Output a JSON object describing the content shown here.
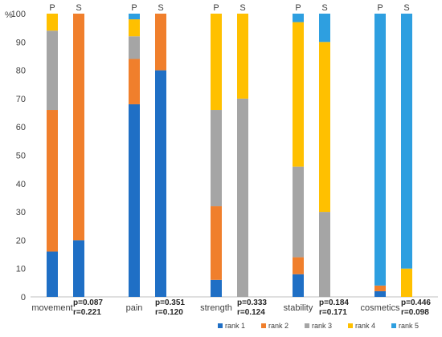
{
  "chart_data": {
    "type": "bar",
    "stacked": true,
    "ylabel": "%",
    "ylim": [
      0,
      100
    ],
    "yticks": [
      0,
      10,
      20,
      30,
      40,
      50,
      60,
      70,
      80,
      90,
      100
    ],
    "grid": false,
    "legend_position": "bottom-right",
    "series": [
      {
        "name": "rank 1",
        "color": "#1F6FC5"
      },
      {
        "name": "rank 2",
        "color": "#F07F2C"
      },
      {
        "name": "rank 3",
        "color": "#A5A5A5"
      },
      {
        "name": "rank 4",
        "color": "#FFC000"
      },
      {
        "name": "rank 5",
        "color": "#2E9FE0"
      }
    ],
    "groups": [
      {
        "label": "movement",
        "stats": [
          "p=0.087",
          "r=0.221"
        ],
        "bars": [
          {
            "label": "P",
            "values": [
              16,
              50,
              28,
              6,
              0
            ]
          },
          {
            "label": "S",
            "values": [
              20,
              80,
              0,
              0,
              0
            ]
          }
        ]
      },
      {
        "label": "pain",
        "stats": [
          "p=0.351",
          "r=0.120"
        ],
        "bars": [
          {
            "label": "P",
            "values": [
              68,
              16,
              8,
              6,
              2
            ]
          },
          {
            "label": "S",
            "values": [
              80,
              20,
              0,
              0,
              0
            ]
          }
        ]
      },
      {
        "label": "strength",
        "stats": [
          "p=0.333",
          "r=0.124"
        ],
        "bars": [
          {
            "label": "P",
            "values": [
              6,
              26,
              34,
              34,
              0
            ]
          },
          {
            "label": "S",
            "values": [
              0,
              0,
              70,
              30,
              0
            ]
          }
        ]
      },
      {
        "label": "stability",
        "stats": [
          "p=0.184",
          "r=0.171"
        ],
        "bars": [
          {
            "label": "P",
            "values": [
              8,
              6,
              32,
              51,
              3
            ]
          },
          {
            "label": "S",
            "values": [
              0,
              0,
              30,
              60,
              10
            ]
          }
        ]
      },
      {
        "label": "cosmetics",
        "stats": [
          "p=0.446",
          "r=0.098"
        ],
        "bars": [
          {
            "label": "P",
            "values": [
              2,
              2,
              0,
              0,
              96
            ]
          },
          {
            "label": "S",
            "values": [
              0,
              0,
              0,
              10,
              90
            ]
          }
        ]
      }
    ]
  }
}
